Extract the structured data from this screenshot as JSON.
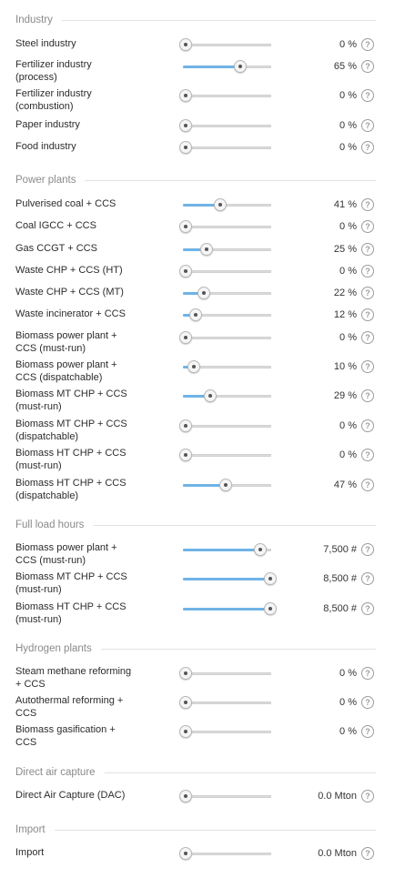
{
  "icons": {
    "help": "question-circle-icon",
    "slider_thumb": "slider-thumb"
  },
  "colors": {
    "accent": "#6fb3e6",
    "track": "#dcdcdc",
    "section_title": "#8a8a8a"
  },
  "help_glyph": "?",
  "sections": [
    {
      "title": "Industry",
      "rows": [
        {
          "label": "Steel industry",
          "value": "0 %",
          "fraction": 0.0
        },
        {
          "label": "Fertilizer industry\n(process)",
          "value": "65 %",
          "fraction": 0.65
        },
        {
          "label": "Fertilizer industry\n(combustion)",
          "value": "0 %",
          "fraction": 0.0
        },
        {
          "label": "Paper industry",
          "value": "0 %",
          "fraction": 0.0
        },
        {
          "label": "Food industry",
          "value": "0 %",
          "fraction": 0.0
        }
      ]
    },
    {
      "title": "Power plants",
      "rows": [
        {
          "label": "Pulverised coal + CCS",
          "value": "41 %",
          "fraction": 0.41
        },
        {
          "label": "Coal IGCC + CCS",
          "value": "0 %",
          "fraction": 0.0
        },
        {
          "label": "Gas CCGT + CCS",
          "value": "25 %",
          "fraction": 0.25
        },
        {
          "label": "Waste CHP + CCS (HT)",
          "value": "0 %",
          "fraction": 0.0
        },
        {
          "label": "Waste CHP + CCS (MT)",
          "value": "22 %",
          "fraction": 0.22
        },
        {
          "label": "Waste incinerator + CCS",
          "value": "12 %",
          "fraction": 0.12
        },
        {
          "label": "Biomass power plant +\nCCS (must-run)",
          "value": "0 %",
          "fraction": 0.0
        },
        {
          "label": "Biomass power plant +\nCCS (dispatchable)",
          "value": "10 %",
          "fraction": 0.1
        },
        {
          "label": "Biomass MT CHP + CCS\n(must-run)",
          "value": "29 %",
          "fraction": 0.29
        },
        {
          "label": "Biomass MT CHP + CCS\n(dispatchable)",
          "value": "0 %",
          "fraction": 0.0
        },
        {
          "label": "Biomass HT CHP + CCS\n(must-run)",
          "value": "0 %",
          "fraction": 0.0
        },
        {
          "label": "Biomass HT CHP + CCS\n(dispatchable)",
          "value": "47 %",
          "fraction": 0.47
        }
      ]
    },
    {
      "title": "Full load hours",
      "rows": [
        {
          "label": "Biomass power plant +\nCCS (must-run)",
          "value": "7,500 #",
          "fraction": 0.88
        },
        {
          "label": "Biomass MT CHP + CCS\n(must-run)",
          "value": "8,500 #",
          "fraction": 1.0
        },
        {
          "label": "Biomass HT CHP + CCS\n(must-run)",
          "value": "8,500 #",
          "fraction": 1.0
        }
      ]
    },
    {
      "title": "Hydrogen plants",
      "rows": [
        {
          "label": "Steam methane reforming\n+ CCS",
          "value": "0 %",
          "fraction": 0.0
        },
        {
          "label": "Autothermal reforming +\nCCS",
          "value": "0 %",
          "fraction": 0.0
        },
        {
          "label": "Biomass gasification +\nCCS",
          "value": "0 %",
          "fraction": 0.0
        }
      ]
    },
    {
      "title": "Direct air capture",
      "rows": [
        {
          "label": "Direct Air Capture (DAC)",
          "value": "0.0 Mton",
          "fraction": 0.0
        }
      ]
    },
    {
      "title": "Import",
      "rows": [
        {
          "label": "Import",
          "value": "0.0 Mton",
          "fraction": 0.0
        }
      ]
    }
  ]
}
